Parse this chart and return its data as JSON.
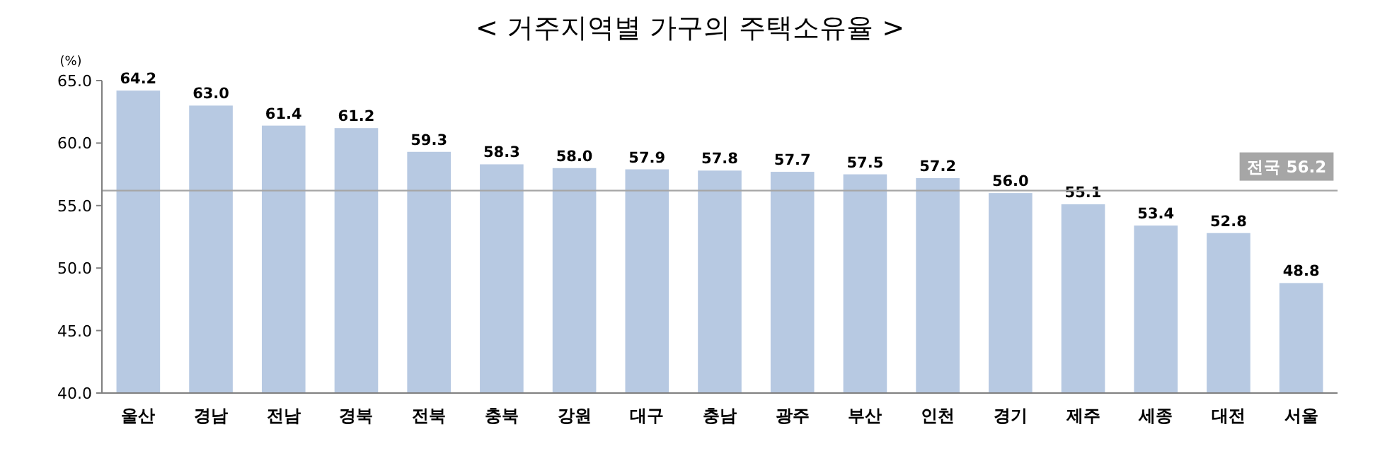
{
  "chart_data": {
    "type": "bar",
    "title": "< 거주지역별 가구의 주택소유율 >",
    "ylabel": "(%)",
    "categories": [
      "울산",
      "경남",
      "전남",
      "경북",
      "전북",
      "충북",
      "강원",
      "대구",
      "충남",
      "광주",
      "부산",
      "인천",
      "경기",
      "제주",
      "세종",
      "대전",
      "서울"
    ],
    "values": [
      64.2,
      63.0,
      61.4,
      61.2,
      59.3,
      58.3,
      58.0,
      57.9,
      57.8,
      57.7,
      57.5,
      57.2,
      56.0,
      55.1,
      53.4,
      52.8,
      48.8
    ],
    "value_labels": [
      "64.2",
      "63.0",
      "61.4",
      "61.2",
      "59.3",
      "58.3",
      "58.0",
      "57.9",
      "57.8",
      "57.7",
      "57.5",
      "57.2",
      "56.0",
      "55.1",
      "53.4",
      "52.8",
      "48.8"
    ],
    "color": "#b7c9e2",
    "ylim": [
      40,
      65
    ],
    "yticks": [
      {
        "value": 40,
        "label": "40.0"
      },
      {
        "value": 45,
        "label": "45.0"
      },
      {
        "value": 50,
        "label": "50.0"
      },
      {
        "value": 55,
        "label": "55.0"
      },
      {
        "value": 60,
        "label": "60.0"
      },
      {
        "value": 65,
        "label": "65.0"
      }
    ],
    "ref_lines": [
      {
        "axis": "y",
        "value": 56.2,
        "label": "전국 56.2",
        "color": "#a6a6a6"
      }
    ]
  }
}
